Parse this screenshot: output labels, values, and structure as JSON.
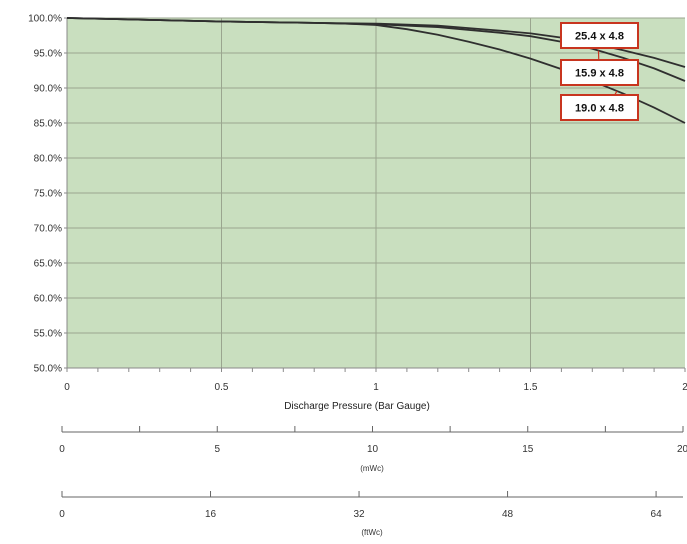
{
  "chart_data": {
    "type": "line",
    "title": "",
    "xlabel": "Discharge Pressure (Bar Gauge)",
    "ylabel": "",
    "xlim": [
      0,
      2
    ],
    "ylim": [
      50,
      100
    ],
    "x_ticks": [
      "0",
      "0.5",
      "1",
      "1.5",
      "2"
    ],
    "x_tick_values": [
      0,
      0.5,
      1,
      1.5,
      2
    ],
    "y_ticks": [
      "50.0%",
      "55.0%",
      "60.0%",
      "65.0%",
      "70.0%",
      "75.0%",
      "80.0%",
      "85.0%",
      "90.0%",
      "95.0%",
      "100.0%"
    ],
    "y_tick_values": [
      50,
      55,
      60,
      65,
      70,
      75,
      80,
      85,
      90,
      95,
      100
    ],
    "plot_background": "#c9dfbf",
    "grid": true,
    "series": [
      {
        "name": "25.4 x 4.8",
        "color": "#2f2f2f",
        "x": [
          0,
          0.5,
          0.8,
          1.0,
          1.2,
          1.4,
          1.5,
          1.6,
          1.7,
          1.8,
          1.9,
          2.0
        ],
        "y": [
          100.0,
          99.5,
          99.3,
          99.2,
          98.9,
          98.2,
          97.8,
          97.2,
          96.4,
          95.4,
          94.3,
          93.0
        ]
      },
      {
        "name": "15.9 x 4.8",
        "color": "#2f2f2f",
        "x": [
          0,
          0.5,
          0.8,
          1.0,
          1.2,
          1.4,
          1.5,
          1.6,
          1.7,
          1.8,
          1.9,
          2.0
        ],
        "y": [
          100.0,
          99.5,
          99.3,
          99.1,
          98.7,
          97.9,
          97.4,
          96.6,
          95.6,
          94.3,
          92.8,
          91.0
        ]
      },
      {
        "name": "19.0 x 4.8",
        "color": "#2f2f2f",
        "x": [
          0,
          0.5,
          0.8,
          0.9,
          1.0,
          1.1,
          1.2,
          1.3,
          1.4,
          1.5,
          1.6,
          1.7,
          1.8,
          1.9,
          2.0
        ],
        "y": [
          100.0,
          99.5,
          99.3,
          99.2,
          99.0,
          98.4,
          97.6,
          96.6,
          95.5,
          94.2,
          92.7,
          91.0,
          89.2,
          87.2,
          85.0
        ]
      }
    ],
    "secondary_axes": [
      {
        "title": "(mWc)",
        "range": [
          0,
          20
        ],
        "ticks": [
          "0",
          "5",
          "10",
          "15",
          "20"
        ],
        "tick_values": [
          0,
          5,
          10,
          15,
          20
        ],
        "minor_tick_values": [
          2.5,
          7.5,
          12.5,
          17.5
        ]
      },
      {
        "title": "(ftWc)",
        "range": [
          0,
          66.9
        ],
        "ticks": [
          "0",
          "16",
          "32",
          "48",
          "64"
        ],
        "tick_values": [
          0,
          16,
          32,
          48,
          64
        ],
        "minor_tick_values": []
      }
    ],
    "callouts": [
      {
        "text": "25.4 x 4.8",
        "color": "#c8351f"
      },
      {
        "text": "15.9 x 4.8",
        "color": "#c8351f"
      },
      {
        "text": "19.0 x 4.8",
        "color": "#c8351f"
      }
    ]
  }
}
